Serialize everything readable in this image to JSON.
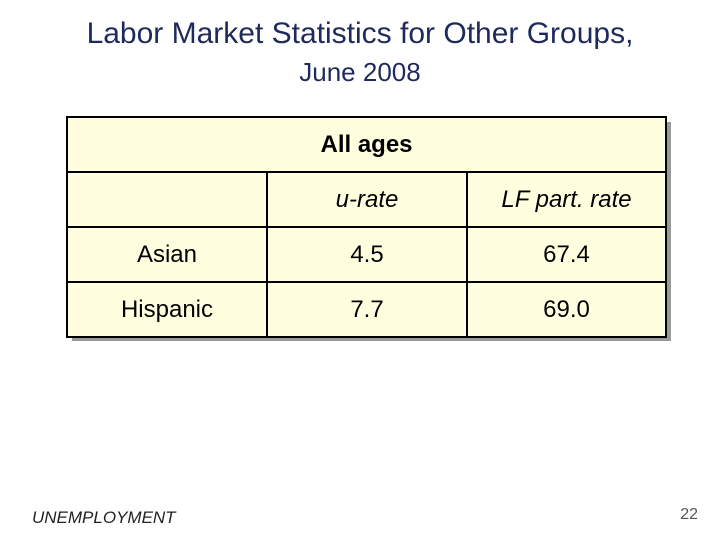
{
  "slide": {
    "title_line1": "Labor Market Statistics for Other Groups,",
    "title_line2": "June 2008"
  },
  "table": {
    "group_header": "All ages",
    "columns": [
      "",
      "u-rate",
      "LF part. rate"
    ],
    "rows": [
      {
        "label": "Asian",
        "u_rate": "4.5",
        "lf_part_rate": "67.4"
      },
      {
        "label": "Hispanic",
        "u_rate": "7.7",
        "lf_part_rate": "69.0"
      }
    ]
  },
  "footer": {
    "section_label": "UNEMPLOYMENT",
    "page_number": "22"
  },
  "colors": {
    "title": "#1f2a5c",
    "table_background": "#ffffe0",
    "shadow": "#9a9a9a"
  }
}
